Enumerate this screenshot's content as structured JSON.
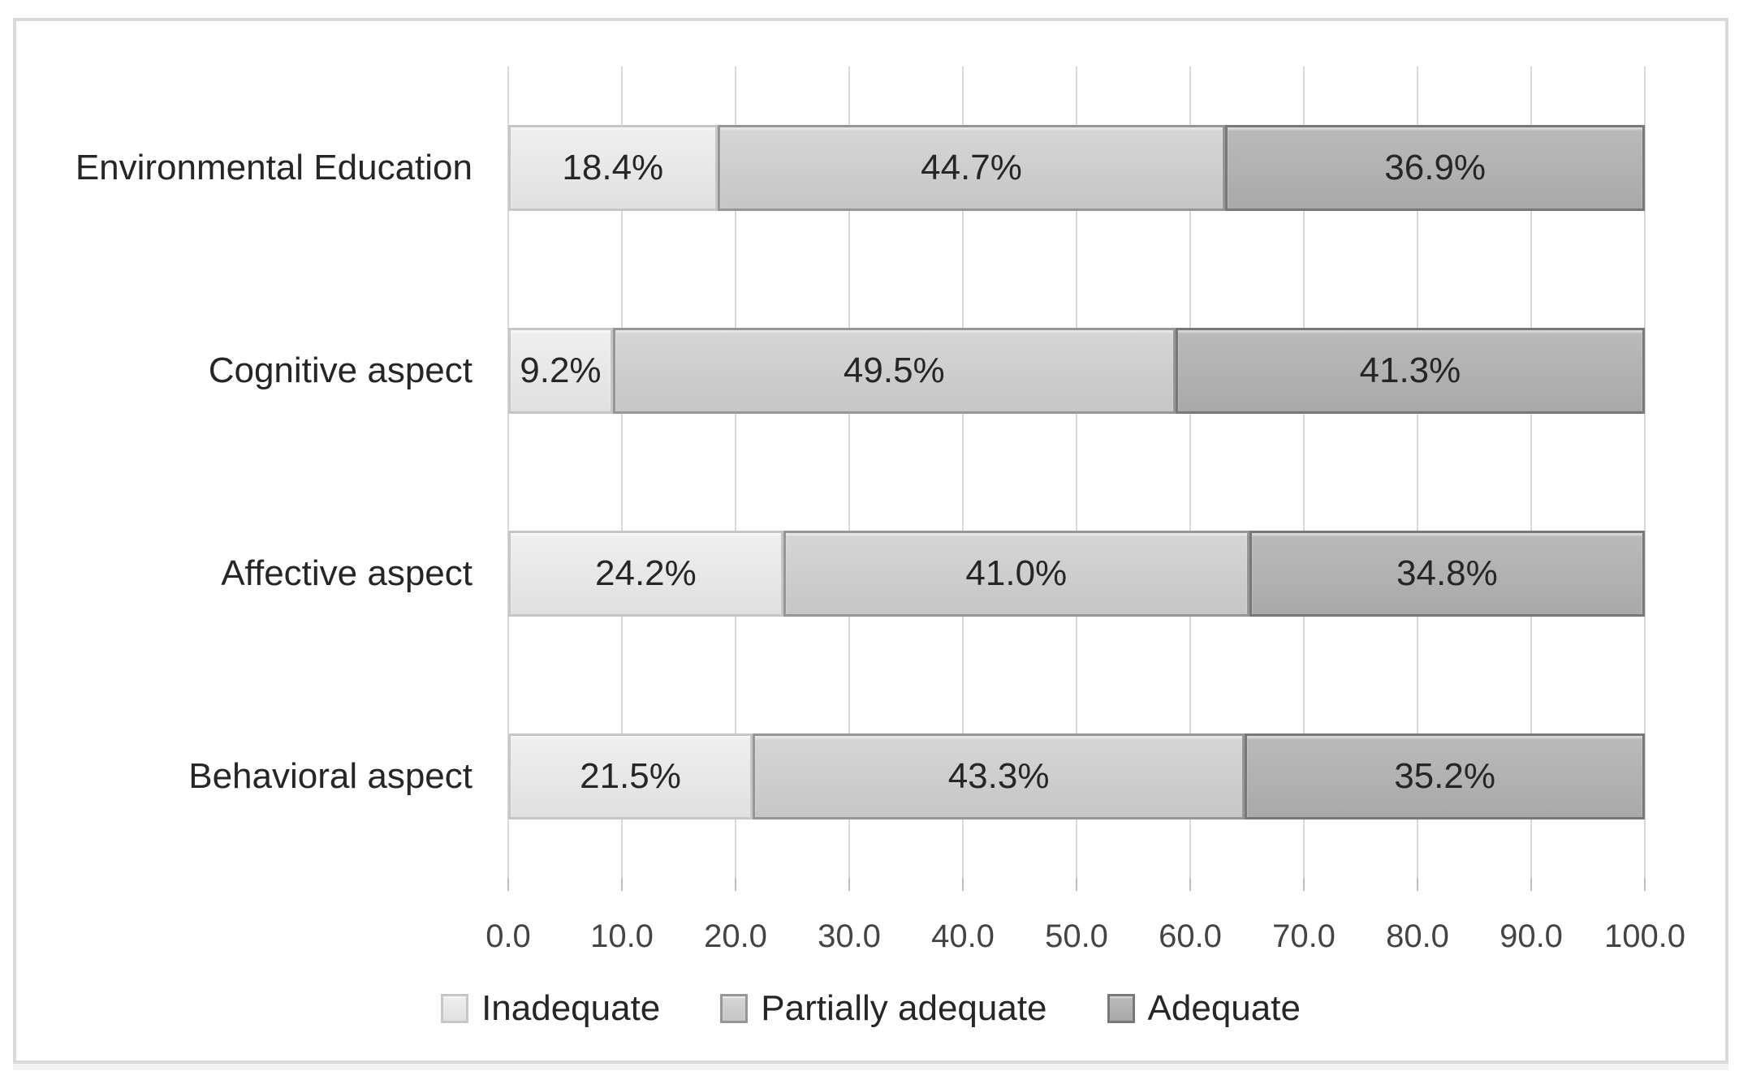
{
  "chart_data": {
    "type": "bar",
    "orientation": "horizontal",
    "stacked": true,
    "title": "",
    "xlabel": "",
    "ylabel": "",
    "xlim": [
      0,
      100
    ],
    "x_tick_step": 10,
    "x_tick_labels": [
      "0.0",
      "10.0",
      "20.0",
      "30.0",
      "40.0",
      "50.0",
      "60.0",
      "70.0",
      "80.0",
      "90.0",
      "100.0"
    ],
    "grid": "vertical-only",
    "legend_position": "bottom-center",
    "categories": [
      "Environmental Education",
      "Cognitive aspect",
      "Affective aspect",
      "Behavioral aspect"
    ],
    "series": [
      {
        "name": "Inadequate",
        "values": [
          18.4,
          9.2,
          24.2,
          21.5
        ]
      },
      {
        "name": "Partially adequate",
        "values": [
          44.7,
          49.5,
          41.0,
          43.3
        ]
      },
      {
        "name": "Adequate",
        "values": [
          36.9,
          41.3,
          34.8,
          35.2
        ]
      }
    ],
    "data_labels": [
      [
        "18.4%",
        "44.7%",
        "36.9%"
      ],
      [
        "9.2%",
        "49.5%",
        "41.3%"
      ],
      [
        "24.2%",
        "41.0%",
        "34.8%"
      ],
      [
        "21.5%",
        "43.3%",
        "35.2%"
      ]
    ],
    "legend": [
      "Inadequate",
      "Partially adequate",
      "Adequate"
    ],
    "colors": {
      "inadequate_fill": "#e9e9e9",
      "inadequate_border": "#c6c6c6",
      "partially_adequate_fill": "#cdcdcd",
      "partially_adequate_border": "#969696",
      "adequate_fill": "#b1b1b1",
      "adequate_border": "#787878",
      "gridline": "#d9d9d9",
      "tick": "#bfbfbf",
      "frame_border": "#d9d9d9",
      "axis_text": "#444444",
      "label_text": "#262626"
    }
  }
}
